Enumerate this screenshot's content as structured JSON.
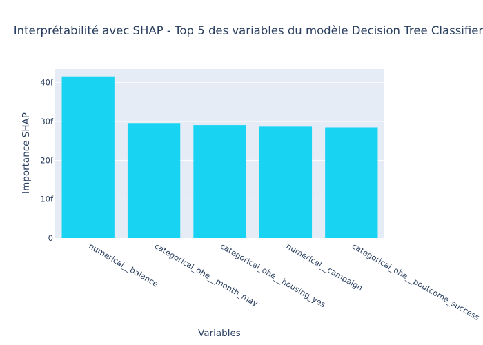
{
  "chart_data": {
    "type": "bar",
    "title": "Interprétabilité avec SHAP - Top 5 des variables du modèle Decision Tree Classifier",
    "xlabel": "Variables",
    "ylabel": "Importance SHAP",
    "categories": [
      "numerical__balance",
      "categorical_ohe__month_may",
      "categorical_ohe__housing_yes",
      "numerical__campaign",
      "categorical_ohe__poutcome_success"
    ],
    "values": [
      41.6,
      29.6,
      29.1,
      28.7,
      28.5
    ],
    "ylim": [
      0,
      43.5
    ],
    "y_ticks": [
      0,
      10,
      20,
      30,
      40
    ],
    "y_tick_labels": [
      "0",
      "10f",
      "20f",
      "30f",
      "40f"
    ],
    "grid": true,
    "bar_color": "#19d3f3",
    "plot_background": "#e5ecf6",
    "text_color": "#2a3f5f"
  }
}
